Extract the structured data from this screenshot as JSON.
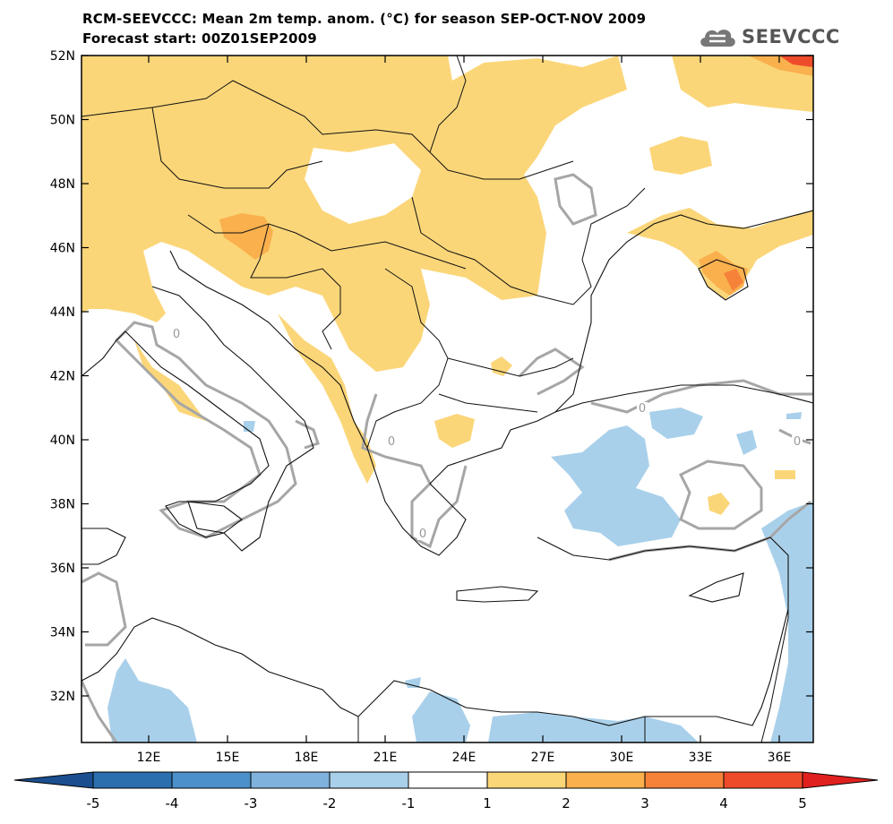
{
  "header": {
    "title_line1": "RCM-SEEVCCC: Mean 2m temp. anom. (°C) for season SEP-OCT-NOV 2009",
    "title_line2": "Forecast start: 00Z01SEP2009",
    "logo_text": "SEEVCCC"
  },
  "map": {
    "lat_labels": [
      "52N",
      "50N",
      "48N",
      "46N",
      "44N",
      "42N",
      "40N",
      "38N",
      "36N",
      "34N",
      "32N"
    ],
    "lon_labels": [
      "12E",
      "15E",
      "18E",
      "21E",
      "24E",
      "27E",
      "30E",
      "33E",
      "36E"
    ],
    "contour_label": "0"
  },
  "colorbar": {
    "labels": [
      "-5",
      "-4",
      "-3",
      "-2",
      "-1",
      "1",
      "2",
      "3",
      "4",
      "5"
    ],
    "colors": [
      "#1a4e8f",
      "#2b6fae",
      "#4b90c8",
      "#7fb2dd",
      "#a9d0ea",
      "#ffffff",
      "#fbd679",
      "#f9b04d",
      "#f6823a",
      "#ee4b2b",
      "#e0201f"
    ]
  },
  "legend_colors": {
    "warm_1_2": "#fbd679",
    "warm_2_3": "#f9b04d",
    "warm_3_4": "#f6823a",
    "warm_4_5": "#ee4b2b",
    "cold_1_2": "#a9d0ea",
    "contour": "#a6a6a6"
  }
}
